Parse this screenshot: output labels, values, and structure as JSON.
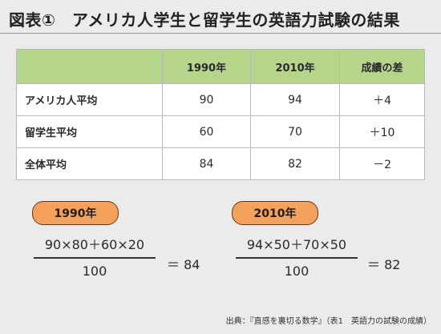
{
  "title": "図表①　アメリカ人学生と留学生の英語力試験の結果",
  "table": {
    "headers": [
      "",
      "1990年",
      "2010年",
      "成績の差"
    ],
    "rows": [
      {
        "label": "アメリカ人平均",
        "v1990": "90",
        "v2010": "94",
        "diff": "＋4"
      },
      {
        "label": "留学生平均",
        "v1990": "60",
        "v2010": "70",
        "diff": "＋10"
      },
      {
        "label": "全体平均",
        "v1990": "84",
        "v2010": "82",
        "diff": "－2"
      }
    ]
  },
  "formulas": [
    {
      "label": "1990年",
      "numerator": "90×80＋60×20",
      "denominator": "100",
      "result": "＝ 84"
    },
    {
      "label": "2010年",
      "numerator": "94×50＋70×50",
      "denominator": "100",
      "result": "＝ 82"
    }
  ],
  "source": "出典：『直感を裏切る数学』（表1　英語力の試験の成績）",
  "colors": {
    "header_bg": "#b5d68a",
    "pill_bg": "#f4a25b",
    "page_bg": "#ebebeb"
  }
}
